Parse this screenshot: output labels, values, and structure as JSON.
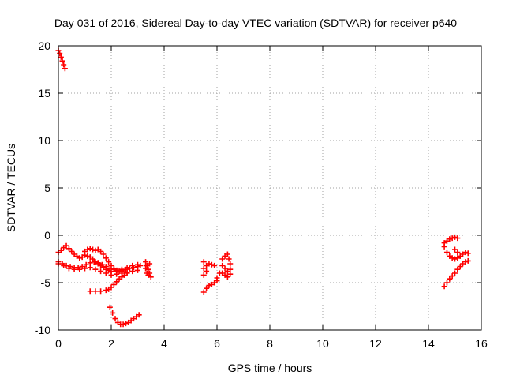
{
  "chart_data": {
    "type": "scatter",
    "title": "Day 031 of 2016, Sidereal Day-to-day VTEC variation (SDTVAR) for receiver p640",
    "xlabel": "GPS time / hours",
    "ylabel": "SDTVAR / TECUs",
    "xlim": [
      0,
      16
    ],
    "ylim": [
      -10,
      20
    ],
    "xticks": [
      "0",
      "2",
      "4",
      "6",
      "8",
      "10",
      "12",
      "14",
      "16"
    ],
    "yticks": [
      "-10",
      "-5",
      "0",
      "5",
      "10",
      "15",
      "20"
    ],
    "grid": true,
    "marker": "plus",
    "color": "#ff0000",
    "series": [
      {
        "points": [
          [
            0.0,
            19.5
          ],
          [
            0.05,
            19.2
          ],
          [
            0.1,
            18.8
          ],
          [
            0.15,
            18.4
          ],
          [
            0.2,
            18.0
          ],
          [
            0.25,
            17.6
          ]
        ]
      },
      {
        "points": [
          [
            0.0,
            -1.8
          ],
          [
            0.1,
            -1.6
          ],
          [
            0.2,
            -1.3
          ],
          [
            0.3,
            -1.1
          ],
          [
            0.4,
            -1.4
          ],
          [
            0.5,
            -1.7
          ],
          [
            0.6,
            -2.0
          ],
          [
            0.7,
            -2.2
          ],
          [
            0.8,
            -2.4
          ],
          [
            0.9,
            -2.3
          ],
          [
            1.0,
            -2.1
          ],
          [
            1.1,
            -2.2
          ],
          [
            1.2,
            -2.3
          ],
          [
            1.3,
            -2.5
          ],
          [
            1.4,
            -2.8
          ],
          [
            1.5,
            -3.0
          ],
          [
            1.6,
            -3.2
          ],
          [
            1.7,
            -3.4
          ],
          [
            1.8,
            -3.6
          ],
          [
            1.9,
            -3.7
          ],
          [
            2.0,
            -3.8
          ],
          [
            2.2,
            -3.8
          ],
          [
            2.4,
            -3.6
          ],
          [
            2.6,
            -3.4
          ],
          [
            2.8,
            -3.2
          ],
          [
            3.0,
            -3.1
          ]
        ]
      },
      {
        "points": [
          [
            0.0,
            -2.8
          ],
          [
            0.15,
            -3.0
          ],
          [
            0.3,
            -3.2
          ],
          [
            0.45,
            -3.3
          ],
          [
            0.6,
            -3.4
          ],
          [
            0.75,
            -3.4
          ],
          [
            0.9,
            -3.3
          ],
          [
            1.05,
            -3.1
          ],
          [
            1.2,
            -2.9
          ],
          [
            1.35,
            -2.8
          ],
          [
            1.5,
            -2.9
          ],
          [
            1.65,
            -3.1
          ],
          [
            1.8,
            -3.3
          ],
          [
            1.95,
            -3.5
          ],
          [
            2.1,
            -3.6
          ],
          [
            2.25,
            -3.7
          ],
          [
            2.4,
            -3.7
          ],
          [
            2.55,
            -3.6
          ],
          [
            2.7,
            -3.5
          ],
          [
            2.85,
            -3.4
          ],
          [
            3.0,
            -3.3
          ],
          [
            3.1,
            -3.2
          ]
        ]
      },
      {
        "points": [
          [
            0.0,
            -3.0
          ],
          [
            0.2,
            -3.2
          ],
          [
            0.4,
            -3.5
          ],
          [
            0.6,
            -3.6
          ],
          [
            0.8,
            -3.6
          ],
          [
            1.0,
            -3.5
          ],
          [
            1.2,
            -3.4
          ],
          [
            1.4,
            -3.6
          ],
          [
            1.6,
            -3.8
          ],
          [
            1.8,
            -4.0
          ],
          [
            2.0,
            -4.2
          ],
          [
            2.2,
            -4.1
          ],
          [
            2.4,
            -4.0
          ],
          [
            2.6,
            -3.9
          ],
          [
            2.8,
            -3.8
          ],
          [
            3.0,
            -3.7
          ]
        ]
      },
      {
        "points": [
          [
            1.0,
            -1.7
          ],
          [
            1.1,
            -1.5
          ],
          [
            1.2,
            -1.4
          ],
          [
            1.3,
            -1.5
          ],
          [
            1.4,
            -1.6
          ],
          [
            1.5,
            -1.5
          ],
          [
            1.6,
            -1.7
          ],
          [
            1.7,
            -2.0
          ],
          [
            1.8,
            -2.4
          ],
          [
            1.9,
            -2.8
          ],
          [
            2.0,
            -3.2
          ],
          [
            2.1,
            -3.5
          ],
          [
            2.2,
            -3.7
          ],
          [
            2.3,
            -3.8
          ],
          [
            2.4,
            -3.8
          ]
        ]
      },
      {
        "points": [
          [
            1.2,
            -5.9
          ],
          [
            1.4,
            -5.9
          ],
          [
            1.6,
            -5.9
          ],
          [
            1.8,
            -5.8
          ],
          [
            1.9,
            -5.7
          ],
          [
            2.0,
            -5.5
          ],
          [
            2.1,
            -5.2
          ],
          [
            2.2,
            -4.9
          ],
          [
            2.3,
            -4.6
          ],
          [
            2.4,
            -4.4
          ],
          [
            2.5,
            -4.2
          ],
          [
            2.6,
            -4.0
          ]
        ]
      },
      {
        "points": [
          [
            1.95,
            -7.6
          ],
          [
            2.05,
            -8.2
          ],
          [
            2.15,
            -8.8
          ],
          [
            2.25,
            -9.2
          ],
          [
            2.35,
            -9.4
          ],
          [
            2.45,
            -9.4
          ],
          [
            2.55,
            -9.3
          ],
          [
            2.65,
            -9.2
          ],
          [
            2.75,
            -9.0
          ],
          [
            2.85,
            -8.8
          ],
          [
            2.95,
            -8.6
          ],
          [
            3.05,
            -8.4
          ]
        ]
      },
      {
        "points": [
          [
            3.3,
            -2.8
          ],
          [
            3.35,
            -3.2
          ],
          [
            3.4,
            -3.6
          ],
          [
            3.45,
            -4.0
          ],
          [
            3.5,
            -4.4
          ],
          [
            3.3,
            -3.5
          ],
          [
            3.35,
            -4.0
          ],
          [
            3.4,
            -4.2
          ],
          [
            3.45,
            -3.0
          ]
        ]
      },
      {
        "points": [
          [
            5.5,
            -2.8
          ],
          [
            5.6,
            -3.2
          ],
          [
            5.7,
            -3.0
          ],
          [
            5.8,
            -3.1
          ],
          [
            5.9,
            -3.2
          ],
          [
            5.5,
            -3.5
          ],
          [
            5.6,
            -3.8
          ],
          [
            5.5,
            -4.2
          ]
        ]
      },
      {
        "points": [
          [
            5.5,
            -6.0
          ],
          [
            5.6,
            -5.6
          ],
          [
            5.7,
            -5.3
          ],
          [
            5.8,
            -5.2
          ],
          [
            5.9,
            -5.0
          ],
          [
            6.0,
            -4.8
          ]
        ]
      },
      {
        "points": [
          [
            6.2,
            -2.5
          ],
          [
            6.3,
            -2.2
          ],
          [
            6.4,
            -2.0
          ],
          [
            6.45,
            -2.5
          ],
          [
            6.5,
            -3.0
          ],
          [
            6.2,
            -3.2
          ],
          [
            6.3,
            -3.5
          ],
          [
            6.4,
            -3.8
          ],
          [
            6.5,
            -3.6
          ],
          [
            6.2,
            -4.0
          ],
          [
            6.3,
            -4.2
          ],
          [
            6.4,
            -4.4
          ],
          [
            6.5,
            -4.1
          ],
          [
            6.0,
            -4.5
          ],
          [
            6.1,
            -4.0
          ]
        ]
      },
      {
        "points": [
          [
            14.6,
            -0.8
          ],
          [
            14.7,
            -0.6
          ],
          [
            14.8,
            -0.4
          ],
          [
            14.9,
            -0.3
          ],
          [
            15.0,
            -0.2
          ],
          [
            15.1,
            -0.3
          ]
        ]
      },
      {
        "points": [
          [
            14.6,
            -1.2
          ],
          [
            14.7,
            -1.8
          ],
          [
            14.8,
            -2.2
          ],
          [
            14.9,
            -2.4
          ],
          [
            15.0,
            -2.5
          ],
          [
            15.1,
            -2.4
          ],
          [
            15.2,
            -2.2
          ],
          [
            15.3,
            -2.0
          ],
          [
            15.4,
            -1.8
          ],
          [
            15.5,
            -1.9
          ]
        ]
      },
      {
        "points": [
          [
            14.6,
            -5.4
          ],
          [
            14.7,
            -5.0
          ],
          [
            14.8,
            -4.6
          ],
          [
            14.9,
            -4.3
          ],
          [
            15.0,
            -4.0
          ],
          [
            15.1,
            -3.6
          ],
          [
            15.2,
            -3.3
          ],
          [
            15.3,
            -3.0
          ],
          [
            15.4,
            -2.8
          ],
          [
            15.5,
            -2.7
          ],
          [
            15.0,
            -1.5
          ],
          [
            15.1,
            -1.8
          ]
        ]
      }
    ]
  }
}
